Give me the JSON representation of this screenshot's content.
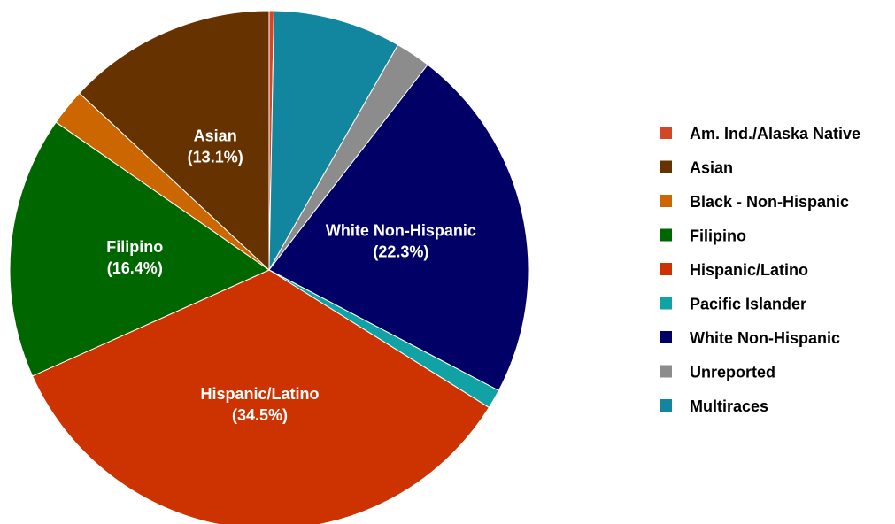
{
  "chart_data": {
    "type": "pie",
    "title": "",
    "legend_position": "right",
    "start_angle_note_deg": 0,
    "slices": [
      {
        "name": "Am. Ind./Alaska Native",
        "value": 0.3,
        "color": "#d24726"
      },
      {
        "name": "Multiraces",
        "value": 8.0,
        "color": "#11869e"
      },
      {
        "name": "Unreported",
        "value": 2.2,
        "color": "#8c8c8c"
      },
      {
        "name": "White Non-Hispanic",
        "value": 22.3,
        "color": "#000066",
        "label_lines": [
          "White Non-Hispanic",
          "(22.3%)"
        ]
      },
      {
        "name": "Pacific Islander",
        "value": 1.2,
        "color": "#11a2a6"
      },
      {
        "name": "Hispanic/Latino",
        "value": 34.5,
        "color": "#cc3300",
        "label_lines": [
          "Hispanic/Latino",
          "(34.5%)"
        ]
      },
      {
        "name": "Filipino",
        "value": 16.4,
        "color": "#006600",
        "label_lines": [
          "Filipino",
          "(16.4%)"
        ]
      },
      {
        "name": "Black - Non-Hispanic",
        "value": 2.3,
        "color": "#cc6600"
      },
      {
        "name": "Asian",
        "value": 13.1,
        "color": "#663300",
        "label_lines": [
          "Asian",
          "(13.1%)"
        ]
      }
    ],
    "legend": [
      {
        "name": "Am. Ind./Alaska Native",
        "color": "#d24726"
      },
      {
        "name": "Asian",
        "color": "#663300"
      },
      {
        "name": "Black - Non-Hispanic",
        "color": "#cc6600"
      },
      {
        "name": "Filipino",
        "color": "#006600"
      },
      {
        "name": "Hispanic/Latino",
        "color": "#cc3300"
      },
      {
        "name": "Pacific Islander",
        "color": "#11a2a6"
      },
      {
        "name": "White Non-Hispanic",
        "color": "#000066"
      },
      {
        "name": "Unreported",
        "color": "#8c8c8c"
      },
      {
        "name": "Multiraces",
        "color": "#11869e"
      }
    ]
  }
}
